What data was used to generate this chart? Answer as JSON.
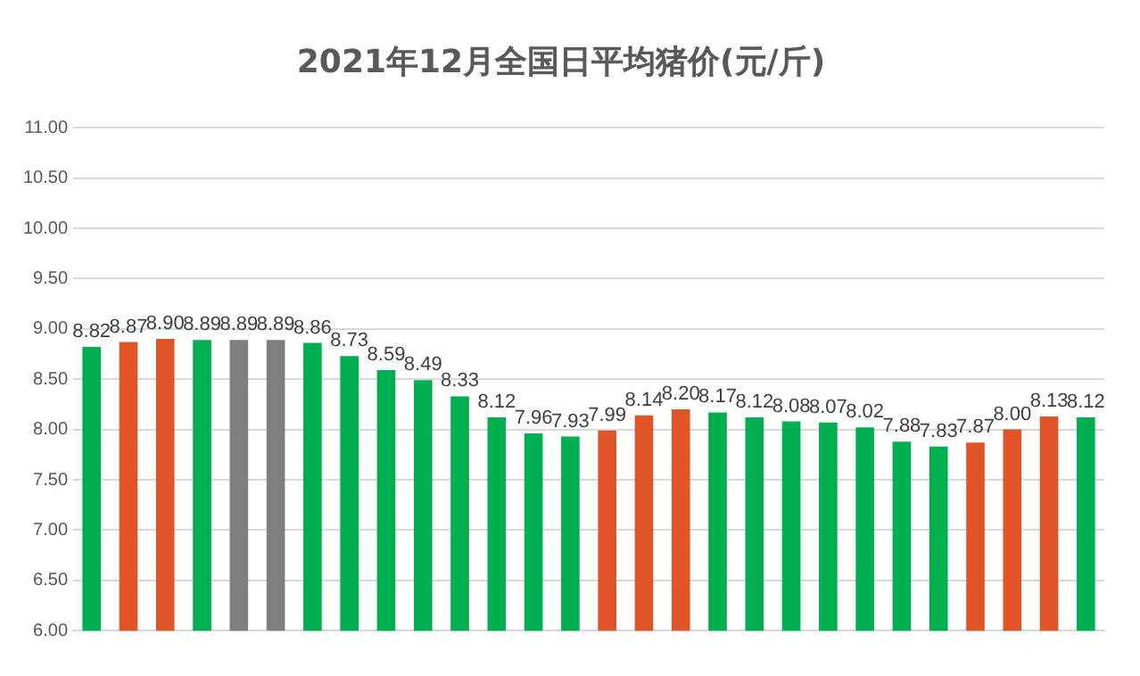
{
  "chart_data": {
    "type": "bar",
    "title": "2021年12月全国日平均猪价(元/斤)",
    "categories": [
      null,
      null,
      null,
      null,
      null,
      null,
      null,
      null,
      null,
      null,
      null,
      null,
      null,
      null,
      null,
      null,
      null,
      null,
      null,
      null,
      null,
      null,
      null,
      null,
      null,
      null,
      null,
      null
    ],
    "values": [
      8.82,
      8.87,
      8.9,
      8.89,
      8.89,
      8.89,
      8.86,
      8.73,
      8.59,
      8.49,
      8.33,
      8.12,
      7.96,
      7.93,
      7.99,
      8.14,
      8.2,
      8.17,
      8.12,
      8.08,
      8.07,
      8.02,
      7.88,
      7.83,
      7.87,
      8.0,
      8.13,
      8.12
    ],
    "colors": [
      "#00b050",
      "#e05428",
      "#e05428",
      "#00b050",
      "#7f7f7f",
      "#7f7f7f",
      "#00b050",
      "#00b050",
      "#00b050",
      "#00b050",
      "#00b050",
      "#00b050",
      "#00b050",
      "#00b050",
      "#e05428",
      "#e05428",
      "#e05428",
      "#00b050",
      "#00b050",
      "#00b050",
      "#00b050",
      "#00b050",
      "#00b050",
      "#00b050",
      "#e05428",
      "#e05428",
      "#e05428",
      "#00b050"
    ],
    "value_labels": [
      "8.82",
      "8.87",
      "8.90",
      "8.89",
      "8.89",
      "8.89",
      "8.86",
      "8.73",
      "8.59",
      "8.49",
      "8.33",
      "8.12",
      "7.96",
      "7.93",
      "7.99",
      "8.14",
      "8.20",
      "8.17",
      "8.12",
      "8.08",
      "8.07",
      "8.02",
      "7.88",
      "7.83",
      "7.87",
      "8.00",
      "8.13",
      "8.12"
    ],
    "ylim": [
      6,
      11
    ],
    "yticks": [
      {
        "value": 6,
        "label": "6.00"
      },
      {
        "value": 6.5,
        "label": "6.50"
      },
      {
        "value": 7,
        "label": "7.00"
      },
      {
        "value": 7.5,
        "label": "7.50"
      },
      {
        "value": 8,
        "label": "8.00"
      },
      {
        "value": 8.5,
        "label": "8.50"
      },
      {
        "value": 9,
        "label": "9.00"
      },
      {
        "value": 9.5,
        "label": "9.50"
      },
      {
        "value": 10,
        "label": "10.00"
      },
      {
        "value": 10.5,
        "label": "10.50"
      },
      {
        "value": 11,
        "label": "11.00"
      }
    ],
    "grid": "y",
    "legend": false
  }
}
